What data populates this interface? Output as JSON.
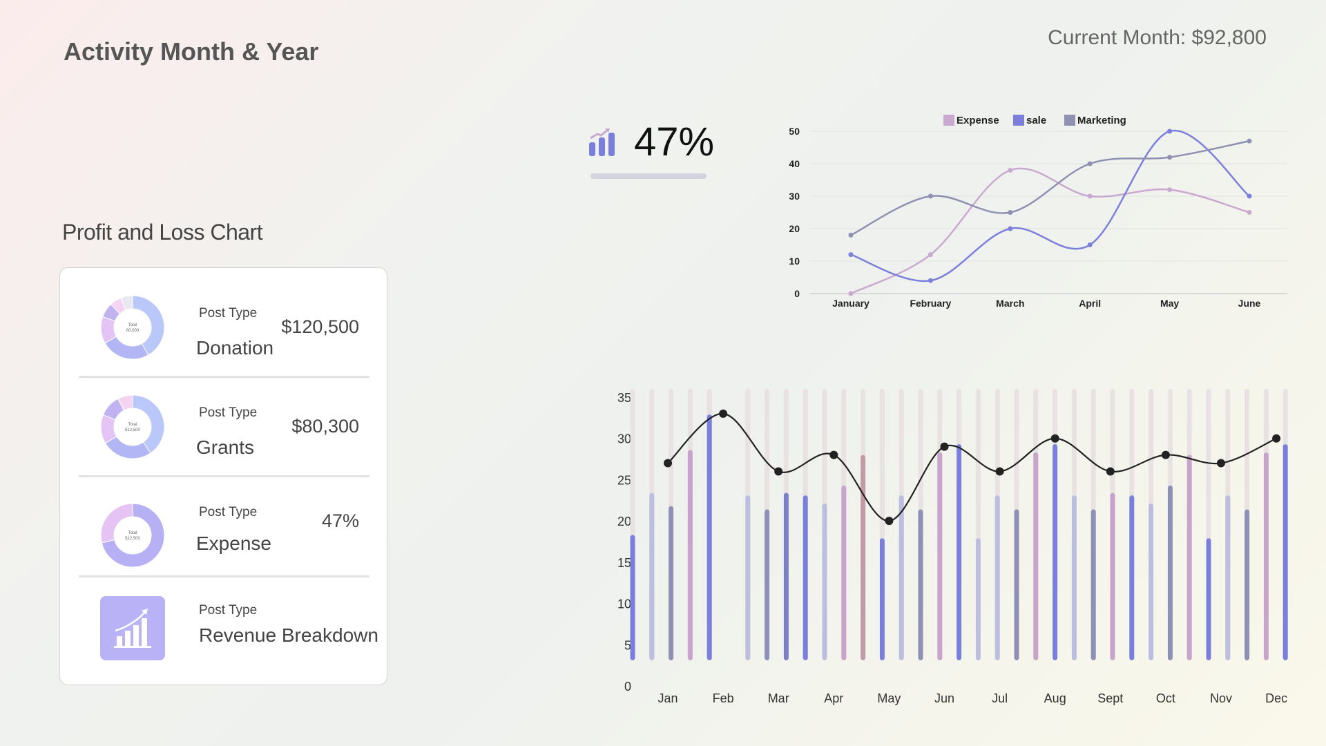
{
  "header": {
    "title": "Activity Month & Year",
    "current_month": "Current Month: $92,800"
  },
  "kpi": {
    "value": "47%",
    "progress_percent": 47,
    "icon": "bar-chart-trend-icon"
  },
  "profit_loss": {
    "title": "Profit and Loss Chart",
    "rows": [
      {
        "type_label": "Post Type",
        "name": "Donation",
        "value": "$120,500",
        "donut": {
          "total_label": "Total",
          "total_value": "60,000",
          "segments": [
            41.8,
            25.0,
            13.7,
            7.5,
            6.0,
            6.0
          ],
          "colors": [
            "#b9c8f8",
            "#b3b6f4",
            "#e3c4f5",
            "#c0b3f0",
            "#f5d4f3",
            "#e8e8f0"
          ]
        }
      },
      {
        "type_label": "Post Type",
        "name": "Grants",
        "value": "$80,300",
        "donut": {
          "total_label": "Total",
          "total_value": "$12,500",
          "segments": [
            40.4,
            26.0,
            14.8,
            11.1,
            7.7
          ],
          "colors": [
            "#b9c8f8",
            "#b3b6f4",
            "#e3c4f5",
            "#c0b3f0",
            "#f5d4f3"
          ]
        }
      },
      {
        "type_label": "Post Type",
        "name": "Expense",
        "value": "47%",
        "donut": {
          "total_label": "Total",
          "total_value": "$12,500",
          "segments": [
            71.2,
            28.8
          ],
          "colors": [
            "#b8b0f5",
            "#e5c4f5"
          ]
        }
      },
      {
        "type_label": "Post Type",
        "name": "Revenue Breakdown",
        "icon": "revenue-chart-icon"
      }
    ]
  },
  "chart_data": [
    {
      "type": "line",
      "categories": [
        "January",
        "February",
        "March",
        "April",
        "May",
        "June"
      ],
      "ylim": [
        0,
        50
      ],
      "yticks": [
        0,
        10,
        20,
        30,
        40,
        50
      ],
      "grid": true,
      "legend": "top-center",
      "series": [
        {
          "name": "Expense",
          "color": "#c9a9cf",
          "values": [
            0,
            12,
            38,
            30,
            32,
            25
          ]
        },
        {
          "name": "sale",
          "color": "#7c7fdb",
          "values": [
            12,
            4,
            20,
            15,
            50,
            30
          ]
        },
        {
          "name": "Marketing",
          "color": "#8f90b2",
          "values": [
            18,
            30,
            25,
            40,
            42,
            47
          ]
        }
      ]
    },
    {
      "type": "bar",
      "categories": [
        "Jan",
        "Feb",
        "Mar",
        "Apr",
        "May",
        "Jun",
        "Jul",
        "Aug",
        "Sept",
        "Oct",
        "Nov",
        "Dec"
      ],
      "ylim": [
        0,
        35
      ],
      "yticks": [
        0,
        5,
        10,
        15,
        20,
        25,
        30,
        35
      ],
      "grid": false,
      "bars": [
        18,
        23.1,
        21.5,
        28.3,
        32.6,
        null,
        22.8,
        21.1,
        23.1,
        22.8,
        21.8,
        24,
        27.7,
        17.6,
        22.8,
        21.1,
        28,
        29,
        17.6,
        22.8,
        21.1,
        28,
        29,
        22.8,
        21.1,
        23.1,
        22.8,
        21.8,
        24,
        27.7,
        17.6,
        22.8,
        21.1,
        28,
        29
      ],
      "bar_colors": [
        "#7b7fdc",
        "#bdbde0",
        "#8f90b5",
        "#c8a4cc",
        "#7b7fdc",
        null,
        "#bdbde0",
        "#8f90b5",
        "#7b7fc4",
        "#7b7fdc",
        "#bdbde0",
        "#c8a4cc",
        "#c49aa8",
        "#7b7fdc",
        "#bdbde0",
        "#8f90b5",
        "#c8a4cc",
        "#7b7fdc",
        "#bdbde0",
        "#bdbde0",
        "#8f90b5",
        "#c8a4cc",
        "#7b7fdc",
        "#bdbde0",
        "#8f90b5",
        "#c8a4cc",
        "#7b7fdc",
        "#bdbde0",
        "#8f90b5",
        "#c8a4cc",
        "#7b7fdc",
        "#bdbde0",
        "#8f90b5",
        "#c8a4cc",
        "#7b7fdc"
      ],
      "track_color": "#e8e2e2",
      "line": {
        "color": "#222222",
        "values": [
          27,
          33,
          26,
          28,
          20,
          29,
          26,
          30,
          26,
          28,
          27,
          30
        ]
      }
    }
  ]
}
